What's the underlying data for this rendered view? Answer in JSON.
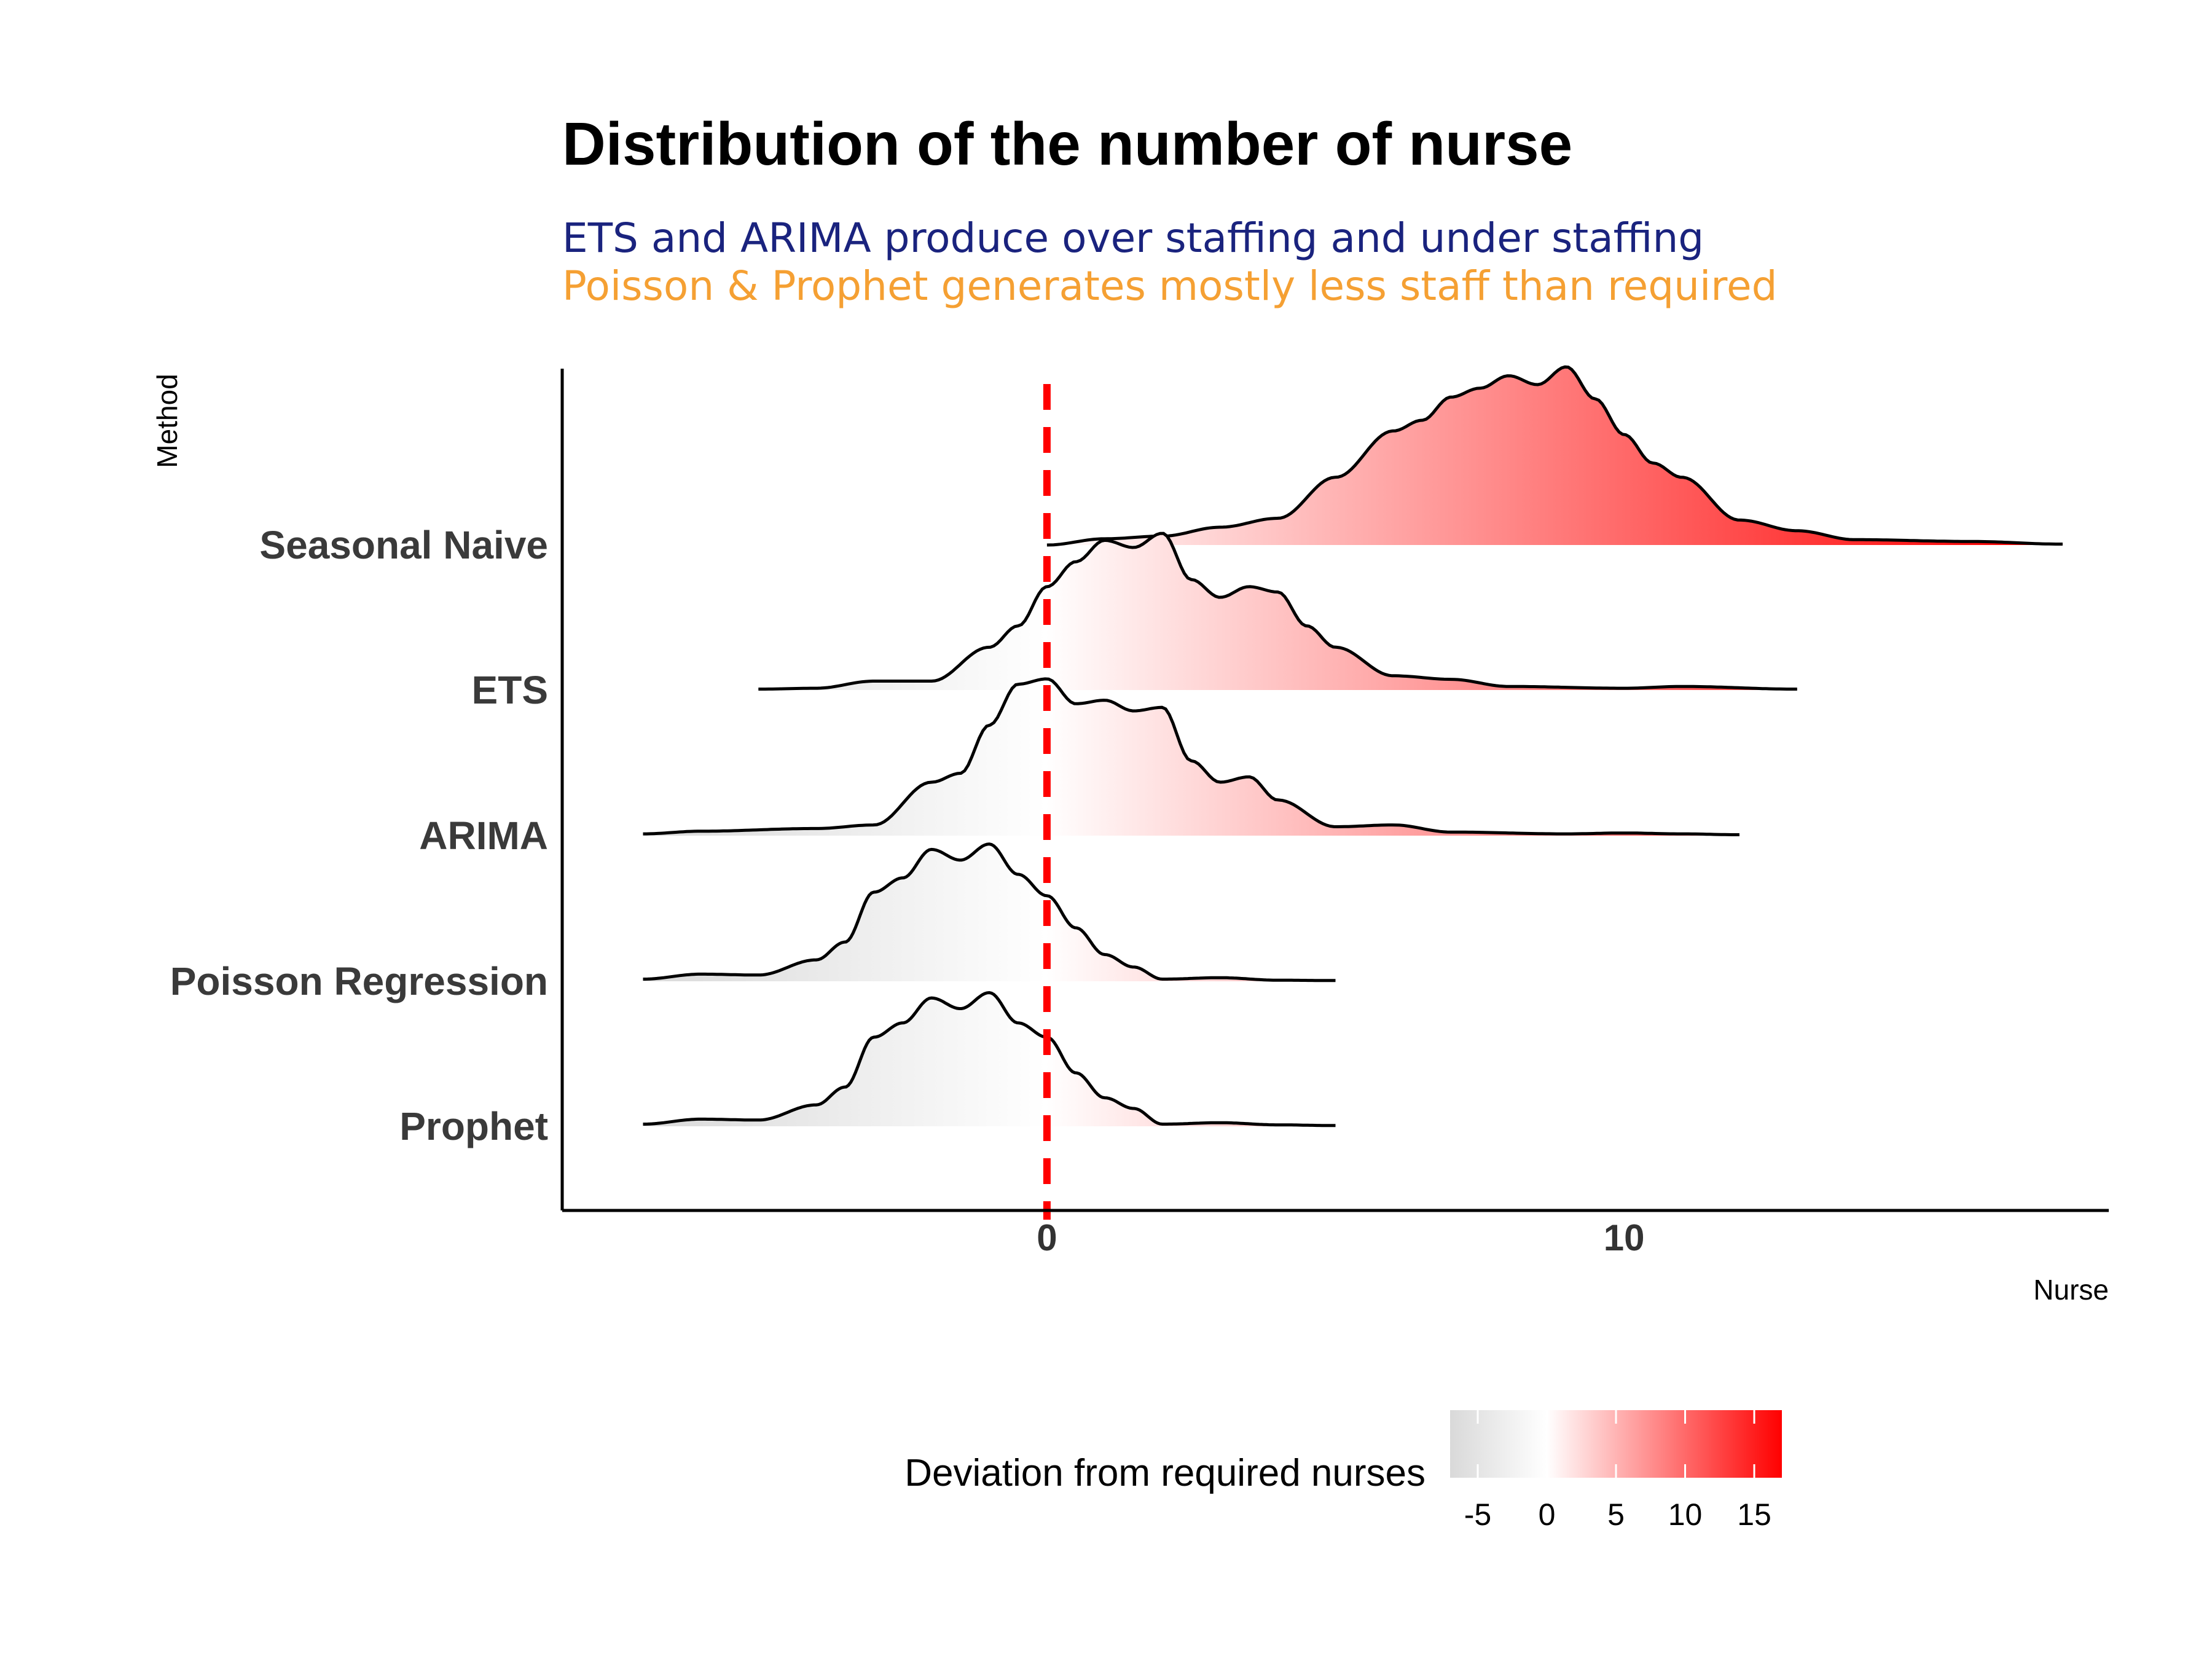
{
  "chart_data": {
    "type": "ridgeline",
    "title": "Distribution of the number of nurse",
    "subtitle_lines": [
      {
        "text": "ETS and ARIMA produce over staffing and under staffing",
        "color": "#1a237e"
      },
      {
        "text": "Poisson & Prophet generates mostly less staff than required",
        "color": "#f5a033"
      }
    ],
    "xlabel": "Nurse",
    "ylabel": "Method",
    "xlim": [
      -8.4,
      18.4
    ],
    "x_ticks": [
      0,
      10
    ],
    "reference_line": {
      "x": 0,
      "color": "#ff0000",
      "style": "dashed"
    },
    "legend": {
      "title": "Deviation from required nurses",
      "placement": "bottom",
      "ticks": [
        -5,
        0,
        5,
        10,
        15
      ],
      "range": [
        -7,
        17
      ],
      "colors": {
        "low": "#d9d9d9",
        "mid": "#ffffff",
        "high": "#ff0000"
      }
    },
    "series": [
      {
        "name": "Prophet",
        "range": [
          -7,
          5
        ],
        "peaks": [
          [
            -7,
            0.012
          ],
          [
            -6,
            0.04
          ],
          [
            -5,
            0.035
          ],
          [
            -4,
            0.12
          ],
          [
            -3.5,
            0.22
          ],
          [
            -3,
            0.5
          ],
          [
            -2.5,
            0.58
          ],
          [
            -2,
            0.72
          ],
          [
            -1.5,
            0.66
          ],
          [
            -1,
            0.75
          ],
          [
            -0.5,
            0.58
          ],
          [
            0,
            0.5
          ],
          [
            0.5,
            0.3
          ],
          [
            1,
            0.16
          ],
          [
            1.5,
            0.1
          ],
          [
            2,
            0.012
          ],
          [
            3,
            0.02
          ],
          [
            4,
            0.008
          ],
          [
            5,
            0.004
          ]
        ]
      },
      {
        "name": "Poisson Regression",
        "range": [
          -7,
          5
        ],
        "peaks": [
          [
            -7,
            0.012
          ],
          [
            -6,
            0.04
          ],
          [
            -5,
            0.035
          ],
          [
            -4,
            0.12
          ],
          [
            -3.5,
            0.22
          ],
          [
            -3,
            0.5
          ],
          [
            -2.5,
            0.58
          ],
          [
            -2,
            0.74
          ],
          [
            -1.5,
            0.68
          ],
          [
            -1,
            0.77
          ],
          [
            -0.5,
            0.6
          ],
          [
            0,
            0.48
          ],
          [
            0.5,
            0.3
          ],
          [
            1,
            0.15
          ],
          [
            1.5,
            0.08
          ],
          [
            2,
            0.012
          ],
          [
            3,
            0.02
          ],
          [
            4,
            0.006
          ],
          [
            5,
            0.004
          ]
        ]
      },
      {
        "name": "ARIMA",
        "range": [
          -7,
          12
        ],
        "peaks": [
          [
            -7,
            0.01
          ],
          [
            -6,
            0.025
          ],
          [
            -4,
            0.04
          ],
          [
            -3,
            0.06
          ],
          [
            -2,
            0.3
          ],
          [
            -1.5,
            0.35
          ],
          [
            -1,
            0.62
          ],
          [
            -0.5,
            0.85
          ],
          [
            0,
            0.88
          ],
          [
            0.5,
            0.74
          ],
          [
            1,
            0.76
          ],
          [
            1.5,
            0.7
          ],
          [
            2,
            0.72
          ],
          [
            2.5,
            0.42
          ],
          [
            3,
            0.3
          ],
          [
            3.5,
            0.33
          ],
          [
            4,
            0.2
          ],
          [
            5,
            0.05
          ],
          [
            6,
            0.06
          ],
          [
            7,
            0.02
          ],
          [
            9,
            0.01
          ],
          [
            10,
            0.015
          ],
          [
            11,
            0.01
          ],
          [
            12,
            0.005
          ]
        ]
      },
      {
        "name": "ETS",
        "range": [
          -5,
          13
        ],
        "peaks": [
          [
            -5,
            0.005
          ],
          [
            -4,
            0.01
          ],
          [
            -3,
            0.05
          ],
          [
            -2,
            0.05
          ],
          [
            -1,
            0.24
          ],
          [
            -0.5,
            0.36
          ],
          [
            0,
            0.58
          ],
          [
            0.5,
            0.72
          ],
          [
            1,
            0.84
          ],
          [
            1.5,
            0.8
          ],
          [
            2,
            0.88
          ],
          [
            2.5,
            0.62
          ],
          [
            3,
            0.52
          ],
          [
            3.5,
            0.58
          ],
          [
            4,
            0.55
          ],
          [
            4.5,
            0.36
          ],
          [
            5,
            0.24
          ],
          [
            6,
            0.08
          ],
          [
            7,
            0.06
          ],
          [
            8,
            0.02
          ],
          [
            10,
            0.01
          ],
          [
            11,
            0.02
          ],
          [
            13,
            0.005
          ]
        ]
      },
      {
        "name": "Seasonal Naive",
        "range": [
          0,
          17.6
        ],
        "peaks": [
          [
            0,
            0.0
          ],
          [
            1,
            0.035
          ],
          [
            2,
            0.05
          ],
          [
            3,
            0.1
          ],
          [
            4,
            0.15
          ],
          [
            5,
            0.38
          ],
          [
            6,
            0.64
          ],
          [
            6.5,
            0.7
          ],
          [
            7,
            0.83
          ],
          [
            7.5,
            0.88
          ],
          [
            8,
            0.95
          ],
          [
            8.5,
            0.9
          ],
          [
            9,
            1.0
          ],
          [
            9.5,
            0.82
          ],
          [
            10,
            0.62
          ],
          [
            10.5,
            0.46
          ],
          [
            11,
            0.38
          ],
          [
            12,
            0.14
          ],
          [
            13,
            0.08
          ],
          [
            14,
            0.03
          ],
          [
            16,
            0.02
          ],
          [
            17.6,
            0.005
          ]
        ]
      }
    ]
  }
}
